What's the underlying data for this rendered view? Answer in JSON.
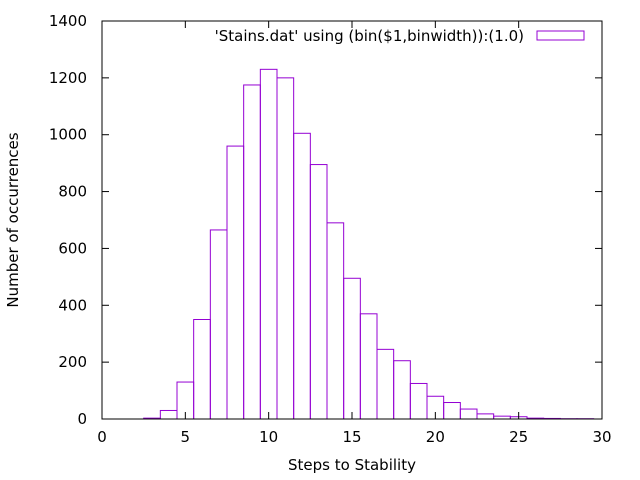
{
  "chart_data": {
    "type": "bar",
    "series": [
      {
        "name": "'Stains.dat' using (bin($1,binwidth)):(1.0)",
        "bin_width": 1,
        "x": [
          3,
          4,
          5,
          6,
          7,
          8,
          9,
          10,
          11,
          12,
          13,
          14,
          15,
          16,
          17,
          18,
          19,
          20,
          21,
          22,
          23,
          24,
          25,
          26,
          27,
          28,
          29
        ],
        "values": [
          3,
          30,
          130,
          350,
          665,
          960,
          1175,
          1230,
          1200,
          1005,
          895,
          690,
          495,
          370,
          245,
          205,
          125,
          80,
          58,
          35,
          18,
          10,
          8,
          3,
          2,
          1,
          1
        ],
        "color": "#9400d3"
      }
    ],
    "xlabel": "Steps to Stability",
    "ylabel": "Number of occurrences",
    "xlim": [
      0,
      30
    ],
    "ylim": [
      0,
      1400
    ],
    "xticks": [
      0,
      5,
      10,
      15,
      20,
      25,
      30
    ],
    "yticks": [
      0,
      200,
      400,
      600,
      800,
      1000,
      1200,
      1400
    ],
    "grid": false,
    "legend_position": "top-right"
  }
}
